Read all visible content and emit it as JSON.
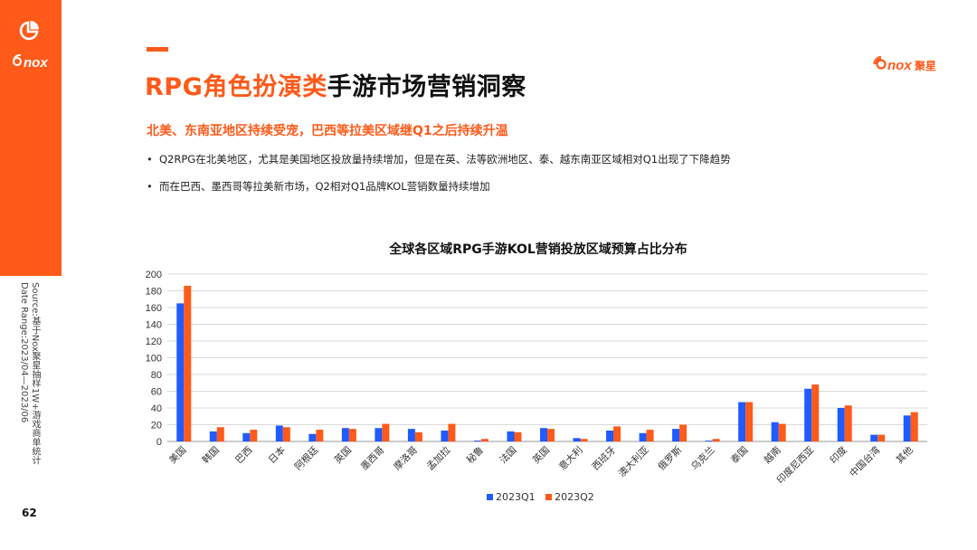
{
  "header": {
    "title_highlight": "RPG角色扮演类",
    "title_rest": "手游市场营销洞察",
    "subtitle": "北美、东南亚地区持续受宠，巴西等拉美区域继Q1之后持续升温"
  },
  "bullets": [
    "Q2RPG在北美地区，尤其是美国地区投放量持续增加，但是在英、法等欧洲地区、泰、越东南亚区域相对Q1出现了下降趋势",
    "而在巴西、墨西哥等拉美新市场，Q2相对Q1品牌KOL营销数量持续增加"
  ],
  "bullet_symbol": "•",
  "side_note": {
    "line1": "Source:基于Nox聚星抽样1W+游戏商单统计",
    "line2": "Date Range:2023/04—2023/06"
  },
  "page_number": "62",
  "brand": {
    "logo_text": "nox",
    "logo_cn": "聚星",
    "accent": "#ff5a1a"
  },
  "icons": {
    "app_logo": "pie-chart-icon",
    "brand_logo": "nox-logo-icon"
  },
  "chart_data": {
    "type": "bar",
    "title": "全球各区域RPG手游KOL营销投放区域预算占比分布",
    "categories": [
      "美国",
      "韩国",
      "巴西",
      "日本",
      "阿根廷",
      "英国",
      "墨西哥",
      "摩洛哥",
      "孟加拉",
      "秘鲁",
      "法国",
      "英国",
      "意大利",
      "西班牙",
      "澳大利亚",
      "俄罗斯",
      "乌克兰",
      "泰国",
      "越南",
      "印度尼西亚",
      "印度",
      "中国台湾",
      "其他"
    ],
    "series": [
      {
        "name": "2023Q1",
        "color": "#1f5bff",
        "values": [
          165,
          12,
          10,
          19,
          9,
          16,
          16,
          15,
          13,
          1,
          12,
          16,
          4,
          13,
          10,
          15,
          1,
          47,
          23,
          63,
          40,
          8,
          31
        ]
      },
      {
        "name": "2023Q2",
        "color": "#ff5a1a",
        "values": [
          186,
          17,
          14,
          17,
          14,
          15,
          21,
          11,
          21,
          3,
          11,
          15,
          3,
          18,
          14,
          20,
          3,
          47,
          21,
          68,
          43,
          8,
          35
        ]
      }
    ],
    "ylim": [
      0,
      200
    ],
    "yticks": [
      0,
      20,
      40,
      60,
      80,
      100,
      120,
      140,
      160,
      180,
      200
    ],
    "grid": true,
    "legend": "bottom"
  }
}
